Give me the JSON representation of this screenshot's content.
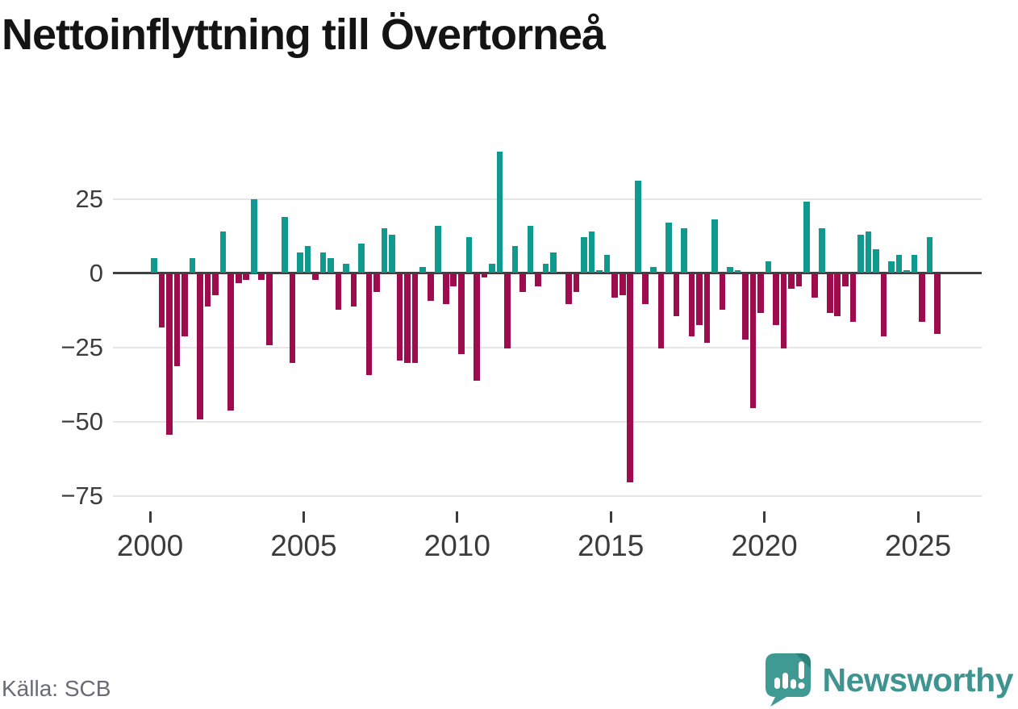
{
  "title": "Nettoinflyttning till Övertorneå",
  "source": {
    "label": "Källa: SCB"
  },
  "branding": {
    "name": "Newsworthy"
  },
  "colors": {
    "positive": "#0f9a8f",
    "negative": "#9e0c4e",
    "zero_line": "#404040",
    "gridline": "#e6e6e6",
    "brand_teal": "#3f948f",
    "icon_teal": "#3e9a93",
    "icon_fold": "#2e837d"
  },
  "chart_data": {
    "type": "bar",
    "title": "Nettoinflyttning till Övertorneå",
    "frequency": "quarterly",
    "start": "2000Q1",
    "end": "2025Q3",
    "grid": "horizontal",
    "ylim": [
      -75,
      43
    ],
    "y_ticks": [
      25,
      0,
      -25,
      -50,
      -75
    ],
    "y_tick_labels": [
      "25",
      "0",
      "−25",
      "−50",
      "−75"
    ],
    "x_tick_labels": [
      "2000",
      "2005",
      "2010",
      "2015",
      "2020",
      "2025"
    ],
    "series": [
      {
        "name": "Nettoinflyttning",
        "values": [
          5,
          -18,
          -54,
          -31,
          -21,
          5,
          -49,
          -11,
          -7,
          14,
          -46,
          -3,
          -2,
          25,
          -2,
          -24,
          0,
          19,
          -30,
          7,
          9,
          -2,
          7,
          5,
          -12,
          3,
          -11,
          10,
          -34,
          -6,
          15,
          13,
          -29,
          -30,
          -30,
          2,
          -9,
          16,
          -10,
          -4,
          -27,
          12,
          -36,
          -1,
          3,
          41,
          -25,
          9,
          -6,
          16,
          -4,
          3,
          7,
          0,
          -10,
          -6,
          12,
          14,
          1,
          6,
          -8,
          -7,
          -70,
          31,
          -10,
          2,
          -25,
          17,
          -14,
          15,
          -21,
          -17,
          -23,
          18,
          -12,
          2,
          1,
          -22,
          -45,
          -13,
          4,
          -17,
          -25,
          -5,
          -4,
          24,
          -8,
          15,
          -13,
          -14,
          -4,
          -16,
          13,
          14,
          8,
          -21,
          4,
          6,
          1,
          6,
          -16,
          12,
          -20
        ]
      }
    ]
  }
}
